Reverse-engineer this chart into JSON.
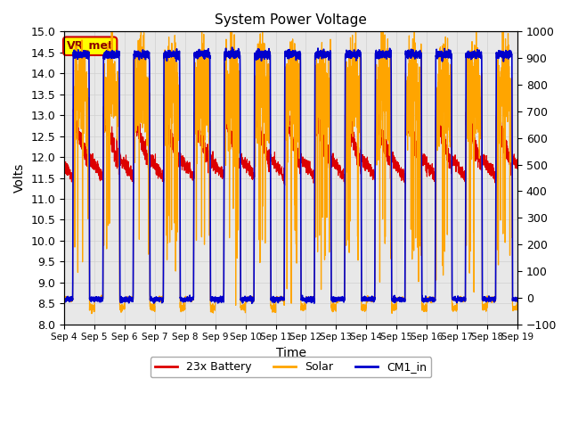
{
  "title": "System Power Voltage",
  "xlabel": "Time",
  "ylabel_left": "Volts",
  "ylim_left": [
    8.0,
    15.0
  ],
  "ylim_right": [
    -100,
    1000
  ],
  "yticks_left": [
    8.0,
    8.5,
    9.0,
    9.5,
    10.0,
    10.5,
    11.0,
    11.5,
    12.0,
    12.5,
    13.0,
    13.5,
    14.0,
    14.5,
    15.0
  ],
  "yticks_right": [
    -100,
    0,
    100,
    200,
    300,
    400,
    500,
    600,
    700,
    800,
    900,
    1000
  ],
  "xtick_labels": [
    "Sep 4",
    "Sep 5",
    "Sep 6",
    "Sep 7",
    "Sep 8",
    "Sep 9",
    "Sep 10",
    "Sep 11",
    "Sep 12",
    "Sep 13",
    "Sep 14",
    "Sep 15",
    "Sep 16",
    "Sep 17",
    "Sep 18",
    "Sep 19"
  ],
  "battery_color": "#dd0000",
  "solar_color": "#ffa500",
  "cm1_color": "#0000cc",
  "annotation_text": "VR_met",
  "annotation_bg": "#ffff00",
  "annotation_border": "#cc0000",
  "grid_color": "#d0d0d0",
  "bg_color": "#e8e8e8"
}
